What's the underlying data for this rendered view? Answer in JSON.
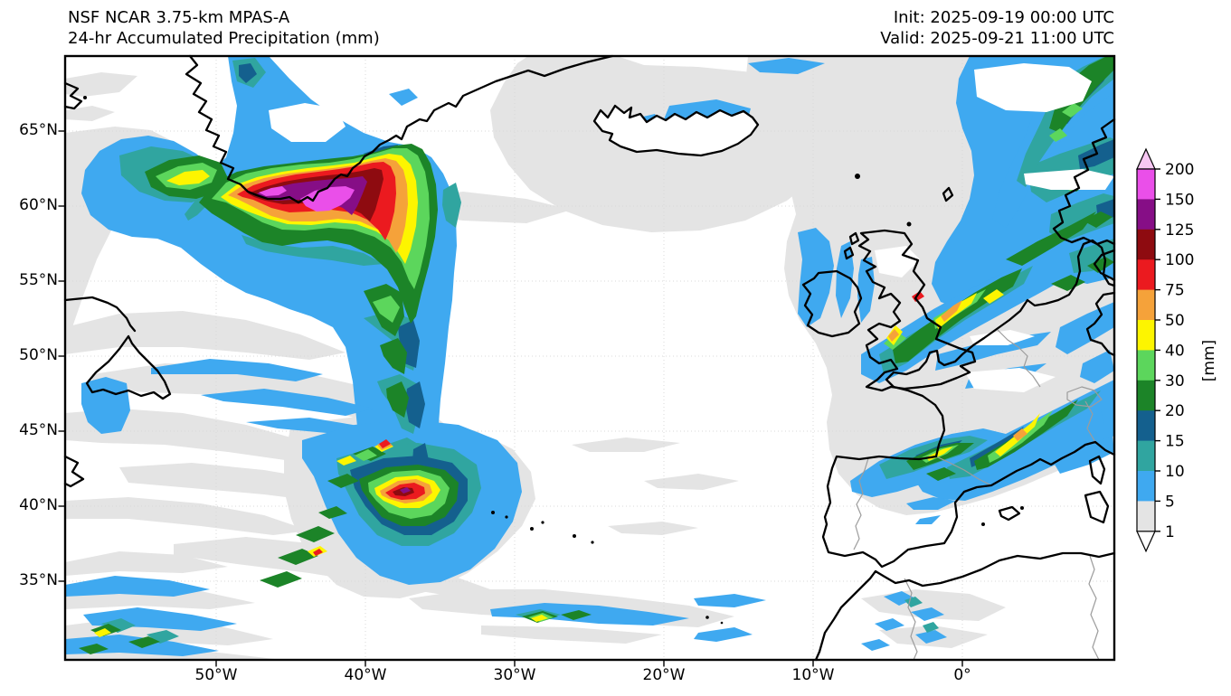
{
  "header": {
    "title_line1": "NSF NCAR 3.75-km MPAS-A",
    "title_line2": "24-hr Accumulated Precipitation (mm)",
    "init_label": "Init: 2025-09-19 00:00 UTC",
    "valid_label": "Valid: 2025-09-21 11:00 UTC"
  },
  "axes": {
    "lat_ticks": [
      {
        "deg": 65,
        "label": "65°N"
      },
      {
        "deg": 60,
        "label": "60°N"
      },
      {
        "deg": 55,
        "label": "55°N"
      },
      {
        "deg": 50,
        "label": "50°N"
      },
      {
        "deg": 45,
        "label": "45°N"
      },
      {
        "deg": 40,
        "label": "40°N"
      },
      {
        "deg": 35,
        "label": "35°N"
      }
    ],
    "lon_ticks": [
      {
        "deg": -50,
        "label": "50°W"
      },
      {
        "deg": -40,
        "label": "40°W"
      },
      {
        "deg": -30,
        "label": "30°W"
      },
      {
        "deg": -20,
        "label": "20°W"
      },
      {
        "deg": -10,
        "label": "10°W"
      },
      {
        "deg": 0,
        "label": "0°"
      }
    ]
  },
  "colorbar": {
    "unit_label": "[mm]",
    "tick_values": [
      "200",
      "150",
      "125",
      "100",
      "75",
      "50",
      "40",
      "30",
      "20",
      "15",
      "10",
      "5",
      "1"
    ],
    "level_colors": {
      "1": "#e4e4e4",
      "5": "#3fa9f0",
      "10": "#30a5a0",
      "15": "#14608e",
      "20": "#1c8428",
      "30": "#5cd65c",
      "40": "#fdf500",
      "50": "#f5a23a",
      "75": "#eb1a1f",
      "100": "#8e0b10",
      "125": "#860e86",
      "150": "#ea4fe9",
      "200": "#f6c6f2"
    },
    "over_color": "#f6c6f2",
    "under_color": "#ffffff"
  },
  "palette": {
    "background": "#ffffff",
    "coastline": "#000000",
    "border": "#9c9c9c",
    "gridline": "#d9d9d9",
    "text": "#000000"
  },
  "chart_data": {
    "type": "heatmap",
    "title": "NSF NCAR 3.75-km MPAS-A — 24-hr Accumulated Precipitation (mm)",
    "init_time": "2025-09-19 00:00 UTC",
    "valid_time": "2025-09-21 11:00 UTC",
    "units": "mm",
    "projection": "latitude-longitude map, North Atlantic / western Europe",
    "lon_range_deg": [
      -60,
      10
    ],
    "lat_range_deg": [
      30,
      70
    ],
    "lon_gridline_interval_deg": 10,
    "lat_gridline_interval_deg": 5,
    "color_levels_mm": [
      1,
      5,
      10,
      15,
      20,
      30,
      40,
      50,
      75,
      100,
      125,
      150,
      200
    ],
    "colorbar_extends": "both",
    "features": [
      "Extreme precipitation maximum hugging the southeast Greenland coast near 60-62N 45-40W, nested contours from 20 mm up to over 200 mm (magenta cores exceeding 150-200 mm)",
      "Broad 5-20 mm plume trailing south from the Greenland storm along ~40W from 58N to 40N",
      "Secondary mid-Atlantic maximum near 40N 38W with core values 75-125 mm surrounded by 20-50 mm",
      "Frontal band over Wales / northern England with 40-100 mm, extending northeast across the North Sea",
      "30-50 mm band across central France aligned southwest-northeast",
      "30-50 mm band along the Bay of Biscay and northern Spain coast",
      "Widespread 5-30 mm along the Norwegian coast and far northeast corner of the domain",
      "Patch of 5-10 mm north of Iceland; light 1-5 mm shield around Iceland",
      "Streaky 1-15 mm bands over the western Atlantic near Newfoundland and in the southwest corner with embedded 20-50 mm showers",
      "Thin 5-50 mm shower band near 34N between 32W and 20W",
      "Scattered 5-15 mm showers over Morocco / Atlas mountains",
      "Large areas of 1-5 mm (light gray) across the central North Atlantic and North Sea"
    ]
  }
}
